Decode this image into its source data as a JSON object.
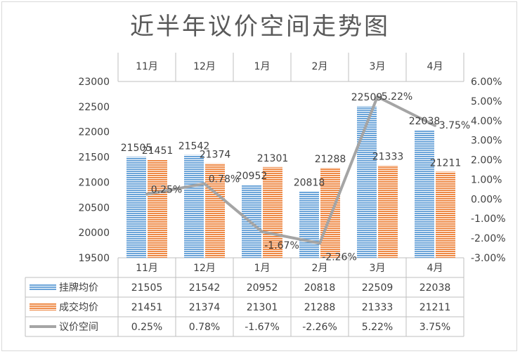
{
  "chart_data": {
    "type": "bar+line",
    "title": "近半年议价空间走势图",
    "categories": [
      "11月",
      "12月",
      "1月",
      "2月",
      "3月",
      "4月"
    ],
    "series": [
      {
        "name": "挂牌均价",
        "kind": "bar",
        "axis": "left",
        "color": "#5b9bd5",
        "values": [
          21505,
          21542,
          20952,
          20818,
          22509,
          22038
        ],
        "labels": [
          "21505",
          "21542",
          "20952",
          "20818",
          "22509",
          "22038"
        ]
      },
      {
        "name": "成交均价",
        "kind": "bar",
        "axis": "left",
        "color": "#ed7d31",
        "values": [
          21451,
          21374,
          21301,
          21288,
          21333,
          21211
        ],
        "labels": [
          "21451",
          "21374",
          "21301",
          "21288",
          "21333",
          "21211"
        ]
      },
      {
        "name": "议价空间",
        "kind": "line",
        "axis": "right",
        "color": "#a5a5a5",
        "values": [
          0.25,
          0.78,
          -1.67,
          -2.26,
          5.22,
          3.75
        ],
        "labels": [
          "0.25%",
          "0.78%",
          "-1.67%",
          "-2.26%",
          "5.22%",
          "3.75%"
        ]
      }
    ],
    "y_left": {
      "min": 19500,
      "max": 23000,
      "step": 500,
      "ticks": [
        "19500",
        "20000",
        "20500",
        "21000",
        "21500",
        "22000",
        "22500",
        "23000"
      ]
    },
    "y_right": {
      "min": -3,
      "max": 6,
      "step": 1,
      "ticks": [
        "-3.00%",
        "-2.00%",
        "-1.00%",
        "0.00%",
        "1.00%",
        "2.00%",
        "3.00%",
        "4.00%",
        "5.00%",
        "6.00%"
      ]
    },
    "data_table": true,
    "top_category_axis": true
  }
}
